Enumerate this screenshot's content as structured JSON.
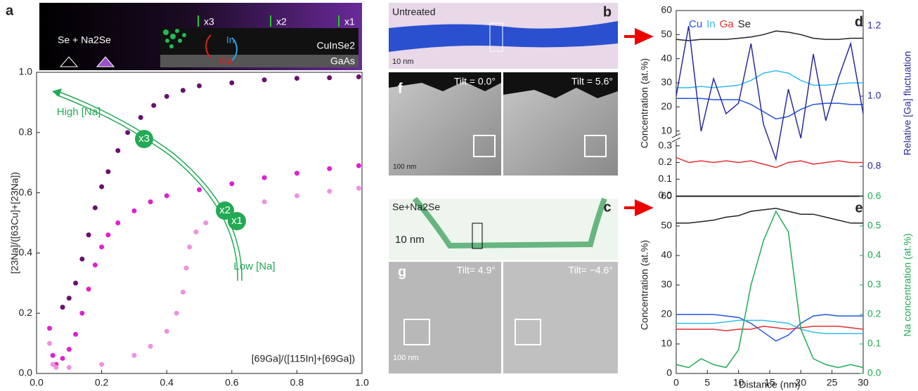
{
  "chart_data": [
    {
      "type": "scatter",
      "panel": "a",
      "xlabel": "[69Ga]/([115In]+[69Ga])",
      "ylabel": "[23Na]/([63Cu]+[23Na])",
      "xlim": [
        0,
        1
      ],
      "ylim": [
        0,
        1
      ],
      "xticks": [
        {
          "value": 0,
          "label": "0.0"
        },
        {
          "value": 0.2,
          "label": "0.2"
        },
        {
          "value": 0.4,
          "label": "0.4"
        },
        {
          "value": 0.6,
          "label": "0.6"
        },
        {
          "value": 0.8,
          "label": "0.8"
        },
        {
          "value": 1,
          "label": "1.0"
        }
      ],
      "yticks": [
        {
          "value": 0,
          "label": "0.0"
        },
        {
          "value": 0.2,
          "label": "0.2"
        },
        {
          "value": 0.4,
          "label": "0.4"
        },
        {
          "value": 0.6,
          "label": "0.6"
        },
        {
          "value": 0.8,
          "label": "0.8"
        },
        {
          "value": 1,
          "label": "1.0"
        }
      ],
      "annotations": [
        "High [Na]",
        "Low [Na]",
        "x3",
        "x2",
        "x1"
      ],
      "inset_labels": [
        "Se + Na2Se",
        "x3",
        "x2",
        "x1",
        "In",
        "Ga",
        "CuInSe2",
        "GaAs"
      ],
      "series": [
        {
          "color": "#6a1070",
          "x": [
            0.08,
            0.1,
            0.12,
            0.14,
            0.16,
            0.18,
            0.2,
            0.22,
            0.25,
            0.28,
            0.32,
            0.36,
            0.4,
            0.45,
            0.5,
            0.6,
            0.7,
            0.8,
            0.9,
            0.99
          ],
          "values": [
            0.22,
            0.25,
            0.3,
            0.38,
            0.46,
            0.55,
            0.62,
            0.67,
            0.74,
            0.8,
            0.85,
            0.89,
            0.92,
            0.94,
            0.955,
            0.965,
            0.975,
            0.98,
            0.982,
            0.985
          ]
        },
        {
          "color": "#e020d0",
          "x": [
            0.04,
            0.05,
            0.06,
            0.08,
            0.1,
            0.12,
            0.14,
            0.16,
            0.18,
            0.2,
            0.22,
            0.25,
            0.3,
            0.35,
            0.4,
            0.5,
            0.6,
            0.7,
            0.8,
            0.9,
            0.99
          ],
          "values": [
            0.15,
            0.06,
            0.03,
            0.05,
            0.08,
            0.13,
            0.2,
            0.28,
            0.36,
            0.42,
            0.46,
            0.5,
            0.54,
            0.57,
            0.59,
            0.61,
            0.63,
            0.65,
            0.665,
            0.68,
            0.69
          ]
        },
        {
          "color": "#f090e0",
          "x": [
            0.04,
            0.05,
            0.06,
            0.1,
            0.2,
            0.3,
            0.35,
            0.4,
            0.43,
            0.45,
            0.46,
            0.47,
            0.49,
            0.52,
            0.6,
            0.7,
            0.8,
            0.9,
            0.99
          ],
          "values": [
            0.1,
            0.03,
            0.02,
            0.02,
            0.03,
            0.06,
            0.09,
            0.14,
            0.2,
            0.27,
            0.35,
            0.42,
            0.47,
            0.5,
            0.54,
            0.57,
            0.59,
            0.605,
            0.615
          ]
        }
      ]
    },
    {
      "type": "line",
      "panel": "d",
      "ylabel": "Concentration (at.%)",
      "y2label": "Relative [Ga] fluctuation",
      "y2color": "#2a2aa0",
      "xlim": [
        0,
        30
      ],
      "ylim": [
        0,
        60
      ],
      "axis_break": [
        0.3,
        10
      ],
      "y2lim": [
        0.716,
        1.244
      ],
      "yticks": [
        {
          "value": 0,
          "label": "0.0"
        },
        0.1,
        0.2,
        0.3,
        10,
        20,
        30,
        40,
        50,
        60
      ],
      "y2ticks": [
        0.8,
        {
          "value": 1,
          "label": "1.0"
        },
        1.2
      ],
      "x": [
        0,
        2,
        4,
        6,
        8,
        10,
        12,
        14,
        16,
        18,
        20,
        22,
        24,
        26,
        28,
        30
      ],
      "series": [
        {
          "name": "Cu",
          "color": "#2255dd",
          "values": [
            23.5,
            23.5,
            23.5,
            23,
            23,
            23,
            21,
            18,
            15,
            16,
            19,
            21,
            21.5,
            21.5,
            21,
            21
          ]
        },
        {
          "name": "In",
          "color": "#33bbee",
          "values": [
            28,
            28,
            28.5,
            28,
            28.5,
            29,
            31,
            34,
            35,
            34,
            31,
            29,
            29,
            29.5,
            30,
            30
          ]
        },
        {
          "name": "Ga",
          "color": "#e03030",
          "values": [
            0.23,
            0.2,
            0.21,
            0.2,
            0.21,
            0.2,
            0.21,
            0.19,
            0.17,
            0.2,
            0.21,
            0.19,
            0.2,
            0.21,
            0.2,
            0.2
          ]
        },
        {
          "name": "Se",
          "color": "#222222",
          "values": [
            48,
            47.5,
            48,
            48,
            48,
            48.5,
            49,
            50,
            51.5,
            51,
            50,
            48.5,
            48,
            48,
            48.5,
            48.5
          ]
        },
        {
          "color": "#2a2aa0",
          "axis": "y2",
          "values": [
            1.0,
            1.2,
            0.9,
            1.05,
            0.95,
            0.98,
            1.15,
            0.92,
            0.82,
            1.02,
            0.88,
            1.12,
            0.93,
            1.05,
            1.15,
            0.95
          ]
        }
      ]
    },
    {
      "type": "line",
      "panel": "e",
      "xlabel": "Distance (nm)",
      "ylabel": "Concentration (at.%)",
      "y2label": "Na concentration (at.%)",
      "y2color": "#22aa55",
      "xlim": [
        0,
        30
      ],
      "ylim": [
        0,
        60
      ],
      "y2lim": [
        0,
        0.6
      ],
      "xticks": [
        0,
        5,
        10,
        15,
        20,
        25,
        30
      ],
      "yticks": [
        0,
        10,
        20,
        30,
        40,
        50,
        60
      ],
      "y2ticks": [
        {
          "value": 0,
          "label": "0.0"
        },
        0.1,
        0.2,
        0.3,
        0.4,
        0.5,
        0.6
      ],
      "x": [
        0,
        2,
        4,
        6,
        8,
        10,
        12,
        14,
        16,
        18,
        20,
        22,
        24,
        26,
        28,
        30
      ],
      "series": [
        {
          "color": "#222222",
          "values": [
            51,
            51,
            51.5,
            52,
            53,
            53.5,
            55,
            55.5,
            56,
            55,
            54,
            54,
            53,
            52,
            51,
            51
          ]
        },
        {
          "color": "#2255dd",
          "values": [
            20,
            20,
            20,
            20,
            19.5,
            19,
            17,
            14,
            11,
            13,
            17,
            19.5,
            20,
            19.5,
            19.5,
            19.5
          ]
        },
        {
          "color": "#33bbee",
          "values": [
            17,
            17,
            17,
            17,
            17.5,
            18,
            18,
            18,
            17.5,
            17,
            15,
            14,
            13.5,
            13.5,
            13.5,
            13.5
          ]
        },
        {
          "color": "#e03030",
          "values": [
            15,
            15,
            15,
            15,
            14.5,
            15,
            15,
            16,
            15.5,
            15,
            15.5,
            16,
            16,
            16,
            15.5,
            15
          ]
        },
        {
          "color": "#22aa55",
          "axis": "y2",
          "values": [
            0.03,
            0.02,
            0.05,
            0.03,
            0.02,
            0.08,
            0.3,
            0.45,
            0.55,
            0.48,
            0.15,
            0.05,
            0.03,
            0.02,
            0.03,
            0.02
          ]
        }
      ]
    }
  ],
  "images": [
    {
      "panel": "b",
      "labels": [
        "Untreated",
        "10 nm"
      ]
    },
    {
      "panel": "f",
      "labels": [
        "Tilt = 0.0°",
        "Tilt = 5.6°",
        "100 nm"
      ]
    },
    {
      "panel": "c",
      "labels": [
        "Se+Na2Se",
        "10 nm"
      ]
    },
    {
      "panel": "g",
      "labels": [
        "Tilt= 4.9°",
        "Tilt= −4.6°",
        "100 nm"
      ]
    }
  ]
}
